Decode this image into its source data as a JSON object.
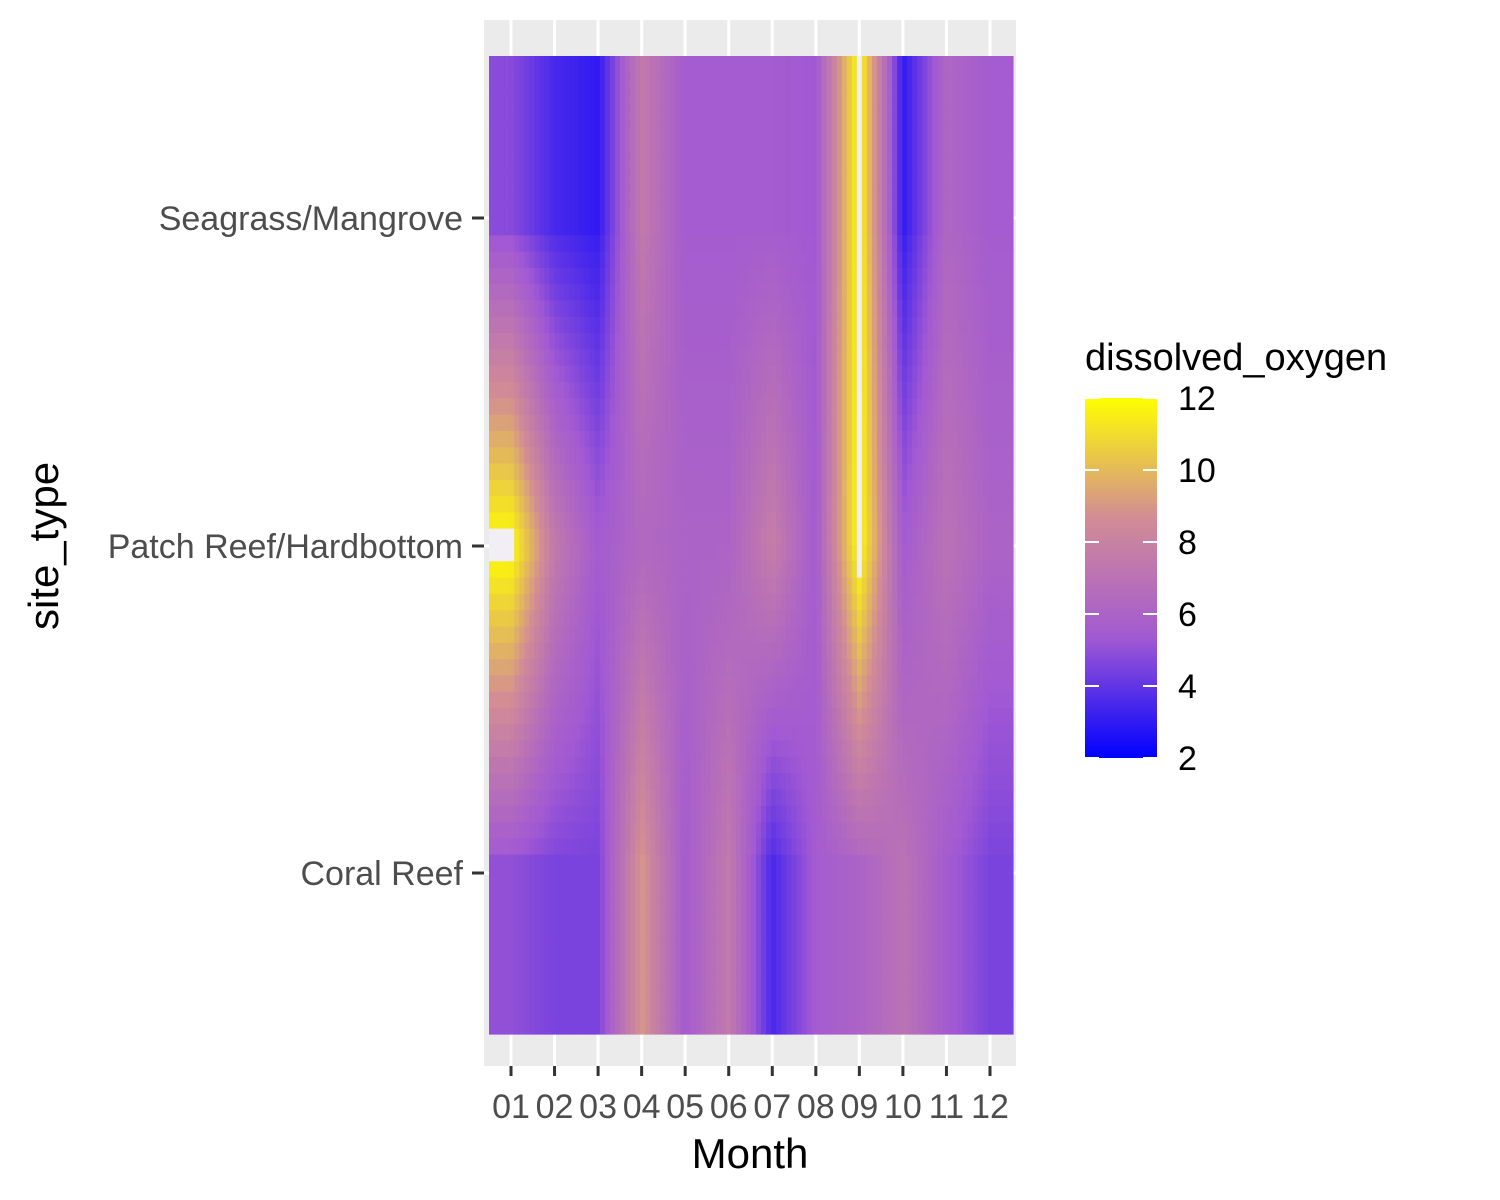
{
  "chart_data": {
    "type": "heatmap",
    "title": "",
    "xlabel": "Month",
    "ylabel": "site_type",
    "x_categories": [
      "01",
      "02",
      "03",
      "04",
      "05",
      "06",
      "07",
      "08",
      "09",
      "10",
      "11",
      "12"
    ],
    "y_categories": [
      "Seagrass/Mangrove",
      "Patch Reef/Hardbottom",
      "Coral Reef"
    ],
    "values": [
      [
        4.8,
        3.5,
        3.0,
        7.5,
        5.5,
        5.5,
        5.5,
        5.3,
        12.0,
        3.0,
        6.2,
        5.5
      ],
      [
        12.0,
        7.5,
        5.5,
        6.3,
        6.0,
        6.0,
        7.8,
        5.5,
        12.0,
        5.5,
        7.0,
        6.0
      ],
      [
        5.0,
        4.5,
        4.5,
        9.0,
        5.5,
        7.5,
        3.5,
        5.5,
        6.0,
        7.0,
        5.5,
        4.5
      ]
    ],
    "interpolated": true,
    "grid": true,
    "legend": {
      "title": "dissolved_oxygen",
      "position": "right",
      "min": 2,
      "max": 12,
      "ticks": [
        "2",
        "4",
        "6",
        "8",
        "10",
        "12"
      ],
      "colors": [
        "#0000ff",
        "#a259d3",
        "#d28c95",
        "#ffff00"
      ],
      "midpoint_color_note": "gradient low blue to high yellow"
    },
    "background_color": "#ebebeb",
    "gridline_color": "#ffffff"
  }
}
